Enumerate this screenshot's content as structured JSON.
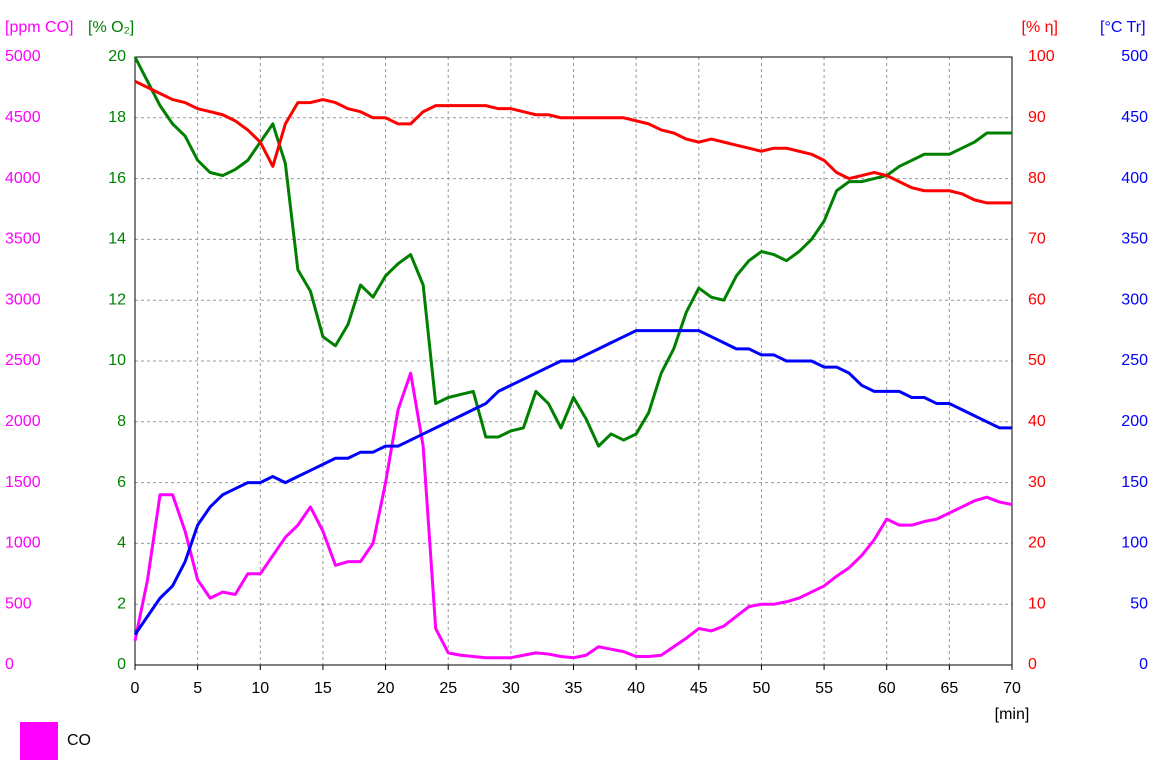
{
  "chart_data": {
    "type": "line",
    "x_label": "[min]",
    "xlim": [
      0,
      70
    ],
    "xticks": [
      0,
      5,
      10,
      15,
      20,
      25,
      30,
      35,
      40,
      45,
      50,
      55,
      60,
      65,
      70
    ],
    "grid": true,
    "x": [
      0,
      1,
      2,
      3,
      4,
      5,
      6,
      7,
      8,
      9,
      10,
      11,
      12,
      13,
      14,
      15,
      16,
      17,
      18,
      19,
      20,
      21,
      22,
      23,
      24,
      25,
      26,
      27,
      28,
      29,
      30,
      31,
      32,
      33,
      34,
      35,
      36,
      37,
      38,
      39,
      40,
      41,
      42,
      43,
      44,
      45,
      46,
      47,
      48,
      49,
      50,
      51,
      52,
      53,
      54,
      55,
      56,
      57,
      58,
      59,
      60,
      61,
      62,
      63,
      64,
      65,
      66,
      67,
      68,
      69,
      70
    ],
    "y_axes": [
      {
        "label": "[ppm CO]",
        "color": "#ff00ff",
        "ylim": [
          0,
          5000
        ],
        "yticks": [
          0,
          500,
          1000,
          1500,
          2000,
          2500,
          3000,
          3500,
          4000,
          4500,
          5000
        ]
      },
      {
        "label": "[% O₂]",
        "color": "#008000",
        "ylim": [
          0,
          20
        ],
        "yticks": [
          0,
          2,
          4,
          6,
          8,
          10,
          12,
          14,
          16,
          18,
          20
        ]
      },
      {
        "label": "[% η]",
        "color": "#ff0000",
        "ylim": [
          0,
          100
        ],
        "yticks": [
          0,
          10,
          20,
          30,
          40,
          50,
          60,
          70,
          80,
          90,
          100
        ]
      },
      {
        "label": "[°C Tr]",
        "color": "#0000ff",
        "ylim": [
          0,
          500
        ],
        "yticks": [
          0,
          50,
          100,
          150,
          200,
          250,
          300,
          350,
          400,
          450,
          500
        ]
      }
    ],
    "series": [
      {
        "name": "CO",
        "color": "#ff00ff",
        "axis": 0,
        "values": [
          200,
          700,
          1400,
          1400,
          1100,
          700,
          550,
          600,
          580,
          750,
          750,
          900,
          1050,
          1150,
          1300,
          1100,
          820,
          850,
          850,
          1000,
          1500,
          2100,
          2400,
          1800,
          300,
          100,
          80,
          70,
          60,
          60,
          60,
          80,
          100,
          90,
          70,
          60,
          80,
          150,
          130,
          110,
          70,
          70,
          80,
          150,
          220,
          300,
          280,
          320,
          400,
          480,
          500,
          500,
          520,
          550,
          600,
          650,
          730,
          800,
          900,
          1030,
          1200,
          1150,
          1150,
          1180,
          1200,
          1250,
          1300,
          1350,
          1380,
          1340,
          1320
        ]
      },
      {
        "color": "#008000",
        "axis": 1,
        "values": [
          20,
          19.2,
          18.4,
          17.8,
          17.4,
          16.6,
          16.2,
          16.1,
          16.3,
          16.6,
          17.2,
          17.8,
          16.5,
          13,
          12.3,
          10.8,
          10.5,
          11.2,
          12.5,
          12.1,
          12.8,
          13.2,
          13.5,
          12.5,
          8.6,
          8.8,
          8.9,
          9.0,
          7.5,
          7.5,
          7.7,
          7.8,
          9.0,
          8.6,
          7.8,
          8.8,
          8.1,
          7.2,
          7.6,
          7.4,
          7.6,
          8.3,
          9.6,
          10.4,
          11.6,
          12.4,
          12.1,
          12.0,
          12.8,
          13.3,
          13.6,
          13.5,
          13.3,
          13.6,
          14.0,
          14.6,
          15.6,
          15.9,
          15.9,
          16.0,
          16.1,
          16.4,
          16.6,
          16.8,
          16.8,
          16.8,
          17.0,
          17.2,
          17.5,
          17.5,
          17.5
        ]
      },
      {
        "color": "#ff0000",
        "axis": 2,
        "values": [
          96,
          95,
          94,
          93,
          92.5,
          91.5,
          91,
          90.5,
          89.5,
          88,
          86,
          82,
          89,
          92.5,
          92.5,
          93,
          92.5,
          91.5,
          91,
          90,
          90,
          89,
          89,
          91,
          92,
          92,
          92,
          92,
          92,
          91.5,
          91.5,
          91,
          90.5,
          90.5,
          90,
          90,
          90,
          90,
          90,
          90,
          89.5,
          89,
          88,
          87.5,
          86.5,
          86,
          86.5,
          86,
          85.5,
          85,
          84.5,
          85,
          85,
          84.5,
          84,
          83,
          81,
          80,
          80.5,
          81,
          80.5,
          79.5,
          78.5,
          78,
          78,
          78,
          77.5,
          76.5,
          76,
          76,
          76
        ]
      },
      {
        "color": "#0000ff",
        "axis": 3,
        "values": [
          25,
          40,
          55,
          65,
          85,
          115,
          130,
          140,
          145,
          150,
          150,
          155,
          150,
          155,
          160,
          165,
          170,
          170,
          175,
          175,
          180,
          180,
          185,
          190,
          195,
          200,
          205,
          210,
          215,
          225,
          230,
          235,
          240,
          245,
          250,
          250,
          255,
          260,
          265,
          270,
          275,
          275,
          275,
          275,
          275,
          275,
          270,
          265,
          260,
          260,
          255,
          255,
          250,
          250,
          250,
          245,
          245,
          240,
          230,
          225,
          225,
          225,
          220,
          220,
          215,
          215,
          210,
          205,
          200,
          195,
          195
        ]
      }
    ]
  }
}
